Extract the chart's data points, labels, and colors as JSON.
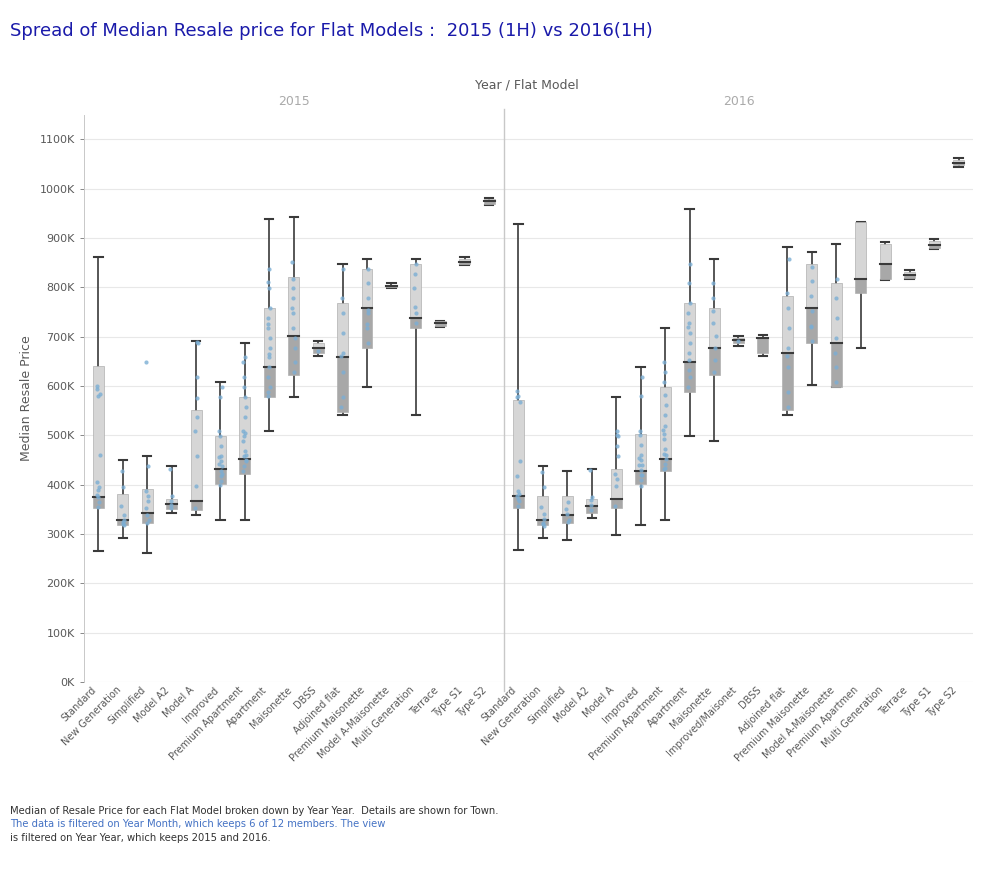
{
  "title": "Spread of Median Resale price for Flat Models :  2015 (1H) vs 2016(1H)",
  "xlabel": "Year / Flat Model",
  "ylabel": "Median Resale Price",
  "title_color": "#1a1aaa",
  "ylim": [
    0,
    1150000
  ],
  "yticks": [
    0,
    100000,
    200000,
    300000,
    400000,
    500000,
    600000,
    700000,
    800000,
    900000,
    1000000,
    1100000
  ],
  "ytick_labels": [
    "0K",
    "100K",
    "200K",
    "300K",
    "400K",
    "500K",
    "600K",
    "700K",
    "800K",
    "900K",
    "1000K",
    "1100K"
  ],
  "categories_2015": [
    "Standard",
    "New Generation",
    "Simplified",
    "Model A2",
    "Model A",
    "Improved",
    "Premium Apartment",
    "Apartment",
    "Maisonette",
    "DBSS",
    "Adjoined flat",
    "Premium Maisonette",
    "Model A-Maisonette",
    "Multi Generation",
    "Terrace",
    "Type S1",
    "Type S2"
  ],
  "categories_2016": [
    "Standard",
    "New Generation",
    "Simplified",
    "Model A2",
    "Model A",
    "Improved",
    "Premium Apartment",
    "Apartment",
    "Maisonette",
    "Improved/Maisonet",
    "DBSS",
    "Adjoined flat",
    "Premium Maisonette",
    "Model A-Maisonette",
    "Premium Apartmen",
    "Multi Generation",
    "Terrace",
    "Type S1",
    "Type S2"
  ],
  "boxes_2015": [
    {
      "q1": 352000,
      "median": 375000,
      "q3": 640000,
      "wl": 265000,
      "wh": 862000,
      "dots": [
        365000,
        395000,
        355000,
        375000,
        460000,
        585000,
        595000,
        405000,
        380000,
        390000,
        600000,
        580000
      ]
    },
    {
      "q1": 318000,
      "median": 328000,
      "q3": 382000,
      "wl": 293000,
      "wh": 450000,
      "dots": [
        320000,
        328000,
        338000,
        318000,
        358000,
        395000,
        428000,
        325000
      ]
    },
    {
      "q1": 322000,
      "median": 342000,
      "q3": 392000,
      "wl": 262000,
      "wh": 458000,
      "dots": [
        328000,
        338000,
        352000,
        322000,
        368000,
        378000,
        388000,
        438000,
        648000
      ]
    },
    {
      "q1": 350000,
      "median": 362000,
      "q3": 372000,
      "wl": 342000,
      "wh": 438000,
      "dots": [
        352000,
        360000,
        368000,
        378000,
        432000
      ]
    },
    {
      "q1": 348000,
      "median": 368000,
      "q3": 552000,
      "wl": 338000,
      "wh": 692000,
      "dots": [
        352000,
        398000,
        458000,
        508000,
        538000,
        575000,
        618000,
        688000,
        690000
      ]
    },
    {
      "q1": 402000,
      "median": 432000,
      "q3": 498000,
      "wl": 328000,
      "wh": 608000,
      "dots": [
        408000,
        418000,
        428000,
        438000,
        448000,
        458000,
        478000,
        498000,
        508000,
        578000,
        598000,
        442000,
        456000,
        422000,
        400000
      ]
    },
    {
      "q1": 422000,
      "median": 452000,
      "q3": 578000,
      "wl": 328000,
      "wh": 688000,
      "dots": [
        428000,
        438000,
        448000,
        458000,
        468000,
        488000,
        498000,
        508000,
        538000,
        558000,
        578000,
        598000,
        618000,
        648000,
        658000,
        505000,
        460000,
        450000
      ]
    },
    {
      "q1": 578000,
      "median": 638000,
      "q3": 758000,
      "wl": 508000,
      "wh": 938000,
      "dots": [
        588000,
        598000,
        618000,
        638000,
        658000,
        678000,
        698000,
        718000,
        738000,
        758000,
        798000,
        838000,
        725000,
        665000,
        580000,
        810000
      ]
    },
    {
      "q1": 622000,
      "median": 702000,
      "q3": 822000,
      "wl": 578000,
      "wh": 942000,
      "dots": [
        628000,
        648000,
        678000,
        698000,
        718000,
        748000,
        778000,
        798000,
        818000,
        852000,
        758000
      ]
    },
    {
      "q1": 668000,
      "median": 678000,
      "q3": 688000,
      "wl": 662000,
      "wh": 692000,
      "dots": [
        672000
      ]
    },
    {
      "q1": 548000,
      "median": 658000,
      "q3": 768000,
      "wl": 542000,
      "wh": 848000,
      "dots": [
        558000,
        578000,
        628000,
        668000,
        708000,
        748000,
        778000,
        838000,
        662000
      ]
    },
    {
      "q1": 678000,
      "median": 758000,
      "q3": 838000,
      "wl": 598000,
      "wh": 858000,
      "dots": [
        688000,
        718000,
        748000,
        778000,
        808000,
        838000,
        725000,
        755000
      ]
    },
    {
      "q1": 800000,
      "median": 802000,
      "q3": 805000,
      "wl": 798000,
      "wh": 808000,
      "dots": []
    },
    {
      "q1": 718000,
      "median": 738000,
      "q3": 848000,
      "wl": 542000,
      "wh": 858000,
      "dots": [
        728000,
        748000,
        798000,
        828000,
        848000,
        760000
      ]
    },
    {
      "q1": 722000,
      "median": 728000,
      "q3": 732000,
      "wl": 720000,
      "wh": 732000,
      "dots": []
    },
    {
      "q1": 848000,
      "median": 852000,
      "q3": 858000,
      "wl": 845000,
      "wh": 862000,
      "dots": []
    },
    {
      "q1": 970000,
      "median": 975000,
      "q3": 980000,
      "wl": 968000,
      "wh": 982000,
      "dots": []
    }
  ],
  "boxes_2016": [
    {
      "q1": 352000,
      "median": 378000,
      "q3": 572000,
      "wl": 268000,
      "wh": 928000,
      "dots": [
        368000,
        382000,
        358000,
        372000,
        448000,
        568000,
        578000,
        418000,
        378000,
        388000,
        590000,
        580000
      ]
    },
    {
      "q1": 318000,
      "median": 328000,
      "q3": 378000,
      "wl": 292000,
      "wh": 438000,
      "dots": [
        320000,
        330000,
        340000,
        316000,
        356000,
        396000,
        426000,
        322000
      ]
    },
    {
      "q1": 322000,
      "median": 338000,
      "q3": 378000,
      "wl": 288000,
      "wh": 428000,
      "dots": [
        328000,
        340000,
        350000,
        324000,
        365000
      ]
    },
    {
      "q1": 342000,
      "median": 358000,
      "q3": 372000,
      "wl": 332000,
      "wh": 432000,
      "dots": [
        348000,
        360000,
        370000,
        376000,
        430000
      ]
    },
    {
      "q1": 352000,
      "median": 372000,
      "q3": 432000,
      "wl": 298000,
      "wh": 578000,
      "dots": [
        358000,
        398000,
        412000,
        422000,
        458000,
        478000,
        508000,
        498000,
        500000
      ]
    },
    {
      "q1": 402000,
      "median": 428000,
      "q3": 502000,
      "wl": 318000,
      "wh": 638000,
      "dots": [
        410000,
        420000,
        430000,
        440000,
        450000,
        460000,
        480000,
        500000,
        510000,
        580000,
        618000,
        440000,
        454000,
        420000,
        398000
      ]
    },
    {
      "q1": 428000,
      "median": 452000,
      "q3": 598000,
      "wl": 328000,
      "wh": 718000,
      "dots": [
        432000,
        442000,
        452000,
        462000,
        472000,
        492000,
        502000,
        512000,
        542000,
        562000,
        582000,
        608000,
        628000,
        648000,
        435000,
        520000,
        460000
      ]
    },
    {
      "q1": 588000,
      "median": 648000,
      "q3": 768000,
      "wl": 498000,
      "wh": 958000,
      "dots": [
        598000,
        618000,
        632000,
        652000,
        668000,
        688000,
        708000,
        728000,
        748000,
        768000,
        808000,
        848000,
        720000
      ]
    },
    {
      "q1": 622000,
      "median": 678000,
      "q3": 758000,
      "wl": 488000,
      "wh": 858000,
      "dots": [
        628000,
        652000,
        678000,
        702000,
        728000,
        752000,
        778000,
        808000
      ]
    },
    {
      "q1": 688000,
      "median": 693000,
      "q3": 698000,
      "wl": 682000,
      "wh": 702000,
      "dots": [
        692000
      ]
    },
    {
      "q1": 668000,
      "median": 698000,
      "q3": 700000,
      "wl": 662000,
      "wh": 703000,
      "dots": []
    },
    {
      "q1": 552000,
      "median": 668000,
      "q3": 782000,
      "wl": 542000,
      "wh": 882000,
      "dots": [
        558000,
        588000,
        638000,
        678000,
        718000,
        758000,
        788000,
        858000,
        660000
      ]
    },
    {
      "q1": 688000,
      "median": 758000,
      "q3": 848000,
      "wl": 602000,
      "wh": 872000,
      "dots": [
        692000,
        722000,
        752000,
        782000,
        812000,
        842000,
        720000
      ]
    },
    {
      "q1": 598000,
      "median": 688000,
      "q3": 808000,
      "wl": 598000,
      "wh": 888000,
      "dots": [
        608000,
        638000,
        668000,
        698000,
        738000,
        778000,
        818000
      ]
    },
    {
      "q1": 788000,
      "median": 818000,
      "q3": 932000,
      "wl": 678000,
      "wh": 932000,
      "dots": []
    },
    {
      "q1": 818000,
      "median": 848000,
      "q3": 888000,
      "wl": 815000,
      "wh": 892000,
      "dots": []
    },
    {
      "q1": 820000,
      "median": 825000,
      "q3": 832000,
      "wl": 818000,
      "wh": 836000,
      "dots": []
    },
    {
      "q1": 880000,
      "median": 885000,
      "q3": 895000,
      "wl": 878000,
      "wh": 898000,
      "dots": []
    },
    {
      "q1": 1048000,
      "median": 1052000,
      "q3": 1058000,
      "wl": 1045000,
      "wh": 1062000,
      "dots": []
    }
  ],
  "box_color_light": "#d6d6d6",
  "box_color_dark": "#a8a8a8",
  "box_edge_color": "#b0b0b0",
  "whisker_color": "#3a3a3a",
  "dot_color": "#7baed4",
  "median_line_color": "#3a3a3a",
  "grid_color": "#e8e8e8",
  "panel_label_color": "#aaaaaa",
  "divider_color": "#c8c8c8",
  "background_color": "#ffffff",
  "tick_label_color": "#595959",
  "axis_label_color": "#595959",
  "footer_color": "#333333",
  "footer_color_blue": "#4472c4"
}
